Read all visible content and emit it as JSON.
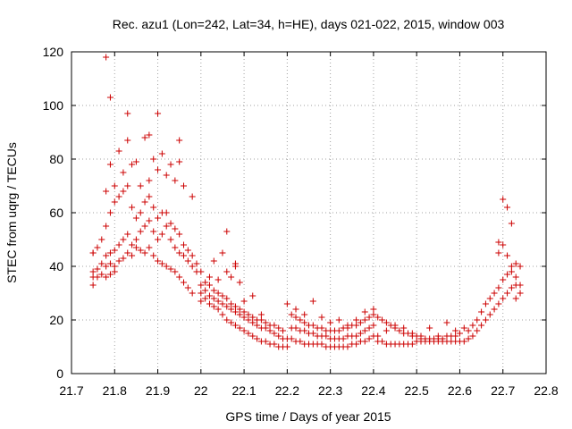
{
  "chart_data": {
    "type": "scatter",
    "title": "Rec. azu1 (Lon=242, Lat=34, h=HE), days 021-022, 2015, window 003",
    "xlabel": "GPS time / Days of year 2015",
    "ylabel": "STEC from uqrg / TECUs",
    "xlim": [
      21.7,
      22.8
    ],
    "ylim": [
      0,
      120
    ],
    "xticks": [
      "21.7",
      "21.8",
      "21.9",
      "22",
      "22.1",
      "22.2",
      "22.3",
      "22.4",
      "22.5",
      "22.6",
      "22.7",
      "22.8"
    ],
    "yticks": [
      "0",
      "20",
      "40",
      "60",
      "80",
      "100",
      "120"
    ],
    "grid": true,
    "marker": "+",
    "color": "#cc0000",
    "series": [
      {
        "x": [
          21.75,
          21.75,
          21.75,
          21.76,
          21.77,
          21.78,
          21.78,
          21.79,
          21.79,
          21.8,
          21.8,
          21.81,
          21.82,
          21.83,
          21.84,
          21.85,
          21.86,
          21.87,
          21.88,
          21.89,
          21.9,
          21.91,
          21.92,
          21.93,
          21.94,
          21.95,
          21.96,
          21.97,
          21.98,
          21.75,
          21.76,
          21.77,
          21.78,
          21.79,
          21.8,
          21.81,
          21.82,
          21.83,
          21.84,
          21.85,
          21.86,
          21.87,
          21.88,
          21.89,
          21.9,
          21.91,
          21.92,
          21.93,
          21.94,
          21.95,
          21.96,
          21.97,
          21.98,
          21.99,
          21.75,
          21.76,
          21.77,
          21.78,
          21.79,
          21.8,
          21.81,
          21.82,
          21.83,
          21.84,
          21.85,
          21.86,
          21.87,
          21.88,
          21.89,
          21.9,
          21.91,
          21.92,
          21.93,
          21.94,
          21.95,
          21.96,
          21.97,
          21.98,
          21.99,
          21.78,
          21.8,
          21.82,
          21.84,
          21.86,
          21.88,
          21.9,
          21.92,
          21.94,
          21.96,
          21.98,
          21.79,
          21.81,
          21.83,
          21.85,
          21.87,
          21.89,
          21.91,
          21.93,
          21.95,
          21.78,
          21.79,
          21.83,
          21.88,
          21.9,
          21.95,
          22.0,
          22.01,
          22.02,
          22.03,
          22.04,
          22.05,
          22.06,
          22.07,
          22.08,
          22.09,
          22.1,
          22.11,
          22.12,
          22.13,
          22.14,
          22.15,
          22.16,
          22.17,
          22.18,
          22.19,
          22.2,
          22.0,
          22.01,
          22.02,
          22.03,
          22.04,
          22.05,
          22.06,
          22.07,
          22.08,
          22.09,
          22.1,
          22.11,
          22.12,
          22.13,
          22.14,
          22.15,
          22.16,
          22.17,
          22.18,
          22.19,
          22.2,
          22.0,
          22.01,
          22.02,
          22.03,
          22.04,
          22.05,
          22.06,
          22.07,
          22.08,
          22.09,
          22.1,
          22.11,
          22.12,
          22.13,
          22.14,
          22.15,
          22.16,
          22.17,
          22.18,
          22.19,
          22.0,
          22.02,
          22.04,
          22.06,
          22.08,
          22.1,
          22.12,
          22.14,
          22.03,
          22.05,
          22.06,
          22.07,
          22.08,
          22.09,
          22.21,
          22.22,
          22.23,
          22.24,
          22.25,
          22.26,
          22.27,
          22.28,
          22.29,
          22.3,
          22.31,
          22.32,
          22.33,
          22.34,
          22.35,
          22.36,
          22.37,
          22.38,
          22.39,
          22.4,
          22.21,
          22.22,
          22.23,
          22.24,
          22.25,
          22.26,
          22.27,
          22.28,
          22.29,
          22.3,
          22.31,
          22.32,
          22.33,
          22.34,
          22.35,
          22.36,
          22.37,
          22.38,
          22.39,
          22.4,
          22.21,
          22.22,
          22.23,
          22.24,
          22.25,
          22.26,
          22.27,
          22.28,
          22.29,
          22.3,
          22.31,
          22.32,
          22.33,
          22.34,
          22.35,
          22.36,
          22.37,
          22.38,
          22.39,
          22.4,
          22.2,
          22.22,
          22.24,
          22.26,
          22.28,
          22.3,
          22.32,
          22.34,
          22.36,
          22.38,
          22.4,
          22.41,
          22.42,
          22.43,
          22.44,
          22.45,
          22.46,
          22.47,
          22.48,
          22.49,
          22.5,
          22.51,
          22.52,
          22.53,
          22.54,
          22.55,
          22.56,
          22.57,
          22.58,
          22.59,
          22.6,
          22.41,
          22.42,
          22.43,
          22.44,
          22.45,
          22.46,
          22.47,
          22.48,
          22.49,
          22.5,
          22.51,
          22.52,
          22.53,
          22.54,
          22.55,
          22.56,
          22.57,
          22.58,
          22.59,
          22.6,
          22.41,
          22.43,
          22.45,
          22.47,
          22.49,
          22.51,
          22.53,
          22.55,
          22.57,
          22.59,
          22.61,
          22.62,
          22.63,
          22.64,
          22.65,
          22.66,
          22.67,
          22.68,
          22.69,
          22.7,
          22.71,
          22.72,
          22.73,
          22.74,
          22.61,
          22.62,
          22.63,
          22.64,
          22.65,
          22.66,
          22.67,
          22.68,
          22.69,
          22.7,
          22.71,
          22.72,
          22.73,
          22.74,
          22.69,
          22.7,
          22.71,
          22.72,
          22.73,
          22.74,
          22.69,
          22.7,
          22.71,
          22.72,
          22.73
        ],
        "y": [
          33,
          38,
          45,
          36,
          37,
          40,
          36,
          41,
          37,
          38,
          40,
          42,
          43,
          45,
          44,
          47,
          46,
          45,
          47,
          44,
          42,
          41,
          40,
          39,
          38,
          36,
          34,
          32,
          30,
          36,
          39,
          41,
          44,
          45,
          46,
          48,
          50,
          52,
          48,
          50,
          53,
          55,
          57,
          53,
          50,
          52,
          55,
          50,
          47,
          45,
          44,
          42,
          40,
          38,
          45,
          47,
          50,
          55,
          60,
          64,
          66,
          68,
          70,
          62,
          58,
          60,
          64,
          66,
          62,
          58,
          60,
          60,
          56,
          54,
          52,
          48,
          46,
          44,
          41,
          68,
          70,
          75,
          78,
          70,
          72,
          76,
          74,
          72,
          70,
          66,
          78,
          83,
          87,
          79,
          88,
          80,
          82,
          78,
          79,
          118,
          103,
          97,
          89,
          97,
          87,
          30,
          31,
          29,
          28,
          27,
          26,
          25,
          24,
          23,
          22,
          21,
          20,
          19,
          18,
          17,
          17,
          16,
          15,
          14,
          13,
          13,
          27,
          28,
          26,
          25,
          24,
          22,
          20,
          19,
          18,
          17,
          16,
          15,
          14,
          13,
          12,
          12,
          11,
          11,
          10,
          10,
          10,
          33,
          34,
          33,
          31,
          30,
          29,
          28,
          26,
          25,
          24,
          23,
          22,
          21,
          20,
          20,
          19,
          18,
          18,
          17,
          16,
          38,
          36,
          35,
          38,
          40,
          27,
          29,
          22,
          42,
          45,
          53,
          36,
          41,
          34,
          13,
          12,
          12,
          11,
          11,
          11,
          11,
          11,
          10,
          10,
          10,
          10,
          10,
          10,
          11,
          11,
          12,
          12,
          13,
          14,
          17,
          17,
          16,
          16,
          15,
          15,
          14,
          14,
          14,
          13,
          13,
          13,
          13,
          14,
          14,
          14,
          15,
          16,
          17,
          18,
          22,
          21,
          20,
          19,
          18,
          18,
          17,
          17,
          16,
          16,
          16,
          16,
          17,
          17,
          18,
          18,
          19,
          20,
          21,
          22,
          26,
          24,
          22,
          27,
          21,
          19,
          20,
          18,
          20,
          23,
          24,
          12,
          12,
          11,
          11,
          11,
          11,
          11,
          11,
          11,
          12,
          12,
          12,
          12,
          12,
          12,
          12,
          12,
          12,
          12,
          12,
          21,
          20,
          19,
          18,
          17,
          16,
          15,
          15,
          14,
          14,
          14,
          13,
          13,
          13,
          13,
          13,
          14,
          14,
          14,
          15,
          14,
          16,
          18,
          17,
          15,
          13,
          17,
          14,
          19,
          16,
          12,
          13,
          14,
          16,
          18,
          20,
          22,
          24,
          26,
          28,
          30,
          32,
          33,
          33,
          17,
          16,
          18,
          20,
          23,
          26,
          28,
          30,
          32,
          35,
          37,
          38,
          36,
          30,
          45,
          48,
          44,
          40,
          41,
          40,
          49,
          65,
          62,
          56,
          28
        ]
      }
    ]
  }
}
